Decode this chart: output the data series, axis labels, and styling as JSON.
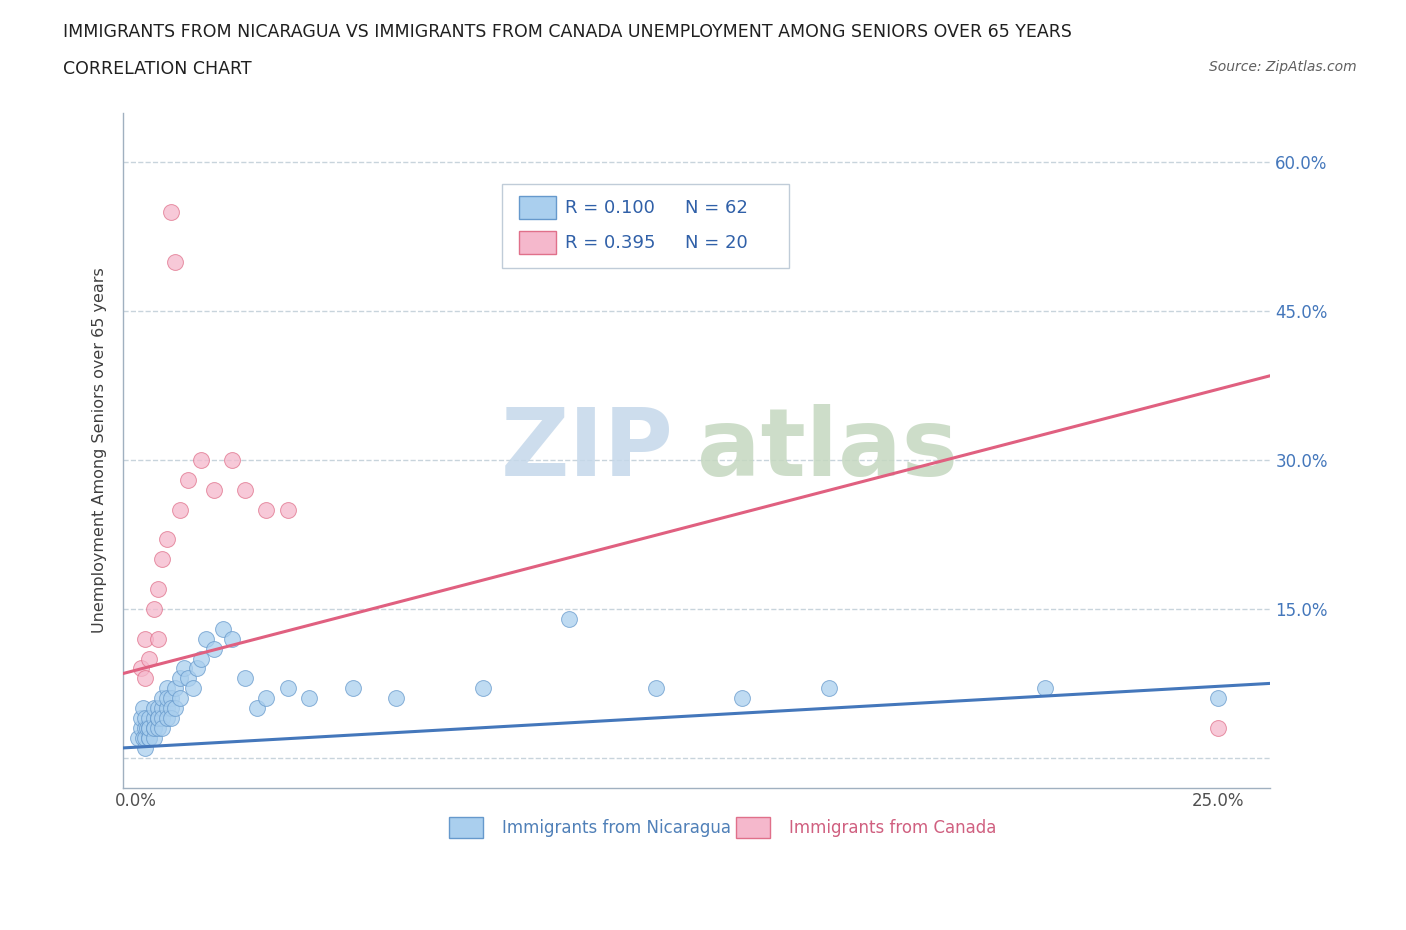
{
  "title_line1": "IMMIGRANTS FROM NICARAGUA VS IMMIGRANTS FROM CANADA UNEMPLOYMENT AMONG SENIORS OVER 65 YEARS",
  "title_line2": "CORRELATION CHART",
  "source_text": "Source: ZipAtlas.com",
  "ylabel": "Unemployment Among Seniors over 65 years",
  "xlim": [
    -0.003,
    0.262
  ],
  "ylim": [
    -0.03,
    0.65
  ],
  "x_ticks": [
    0.0,
    0.05,
    0.1,
    0.15,
    0.2,
    0.25
  ],
  "y_ticks": [
    0.0,
    0.15,
    0.3,
    0.45,
    0.6
  ],
  "nicaragua_color": "#aacfee",
  "nicaragua_edge": "#6699cc",
  "canada_color": "#f5b8cc",
  "canada_edge": "#e0708a",
  "nicaragua_line_color": "#4477bb",
  "canada_line_color": "#e06080",
  "R_nicaragua": 0.1,
  "N_nicaragua": 62,
  "R_canada": 0.395,
  "N_canada": 20,
  "legend_label_nicaragua": "Immigrants from Nicaragua",
  "legend_label_canada": "Immigrants from Canada",
  "watermark_zip": "ZIP",
  "watermark_atlas": "atlas",
  "watermark_color_zip": "#c5d8ea",
  "watermark_color_atlas": "#c5d8c0",
  "grid_color": "#c8d4dc",
  "nicaragua_x": [
    0.0005,
    0.001,
    0.001,
    0.0015,
    0.0015,
    0.002,
    0.002,
    0.002,
    0.002,
    0.0025,
    0.003,
    0.003,
    0.003,
    0.003,
    0.003,
    0.004,
    0.004,
    0.004,
    0.004,
    0.004,
    0.005,
    0.005,
    0.005,
    0.005,
    0.006,
    0.006,
    0.006,
    0.006,
    0.007,
    0.007,
    0.007,
    0.007,
    0.008,
    0.008,
    0.008,
    0.009,
    0.009,
    0.01,
    0.01,
    0.011,
    0.012,
    0.013,
    0.014,
    0.015,
    0.016,
    0.018,
    0.02,
    0.022,
    0.025,
    0.028,
    0.03,
    0.035,
    0.04,
    0.05,
    0.06,
    0.08,
    0.1,
    0.12,
    0.14,
    0.16,
    0.21,
    0.25
  ],
  "nicaragua_y": [
    0.02,
    0.03,
    0.04,
    0.02,
    0.05,
    0.01,
    0.03,
    0.04,
    0.02,
    0.03,
    0.02,
    0.03,
    0.04,
    0.02,
    0.03,
    0.03,
    0.04,
    0.05,
    0.02,
    0.03,
    0.04,
    0.05,
    0.03,
    0.04,
    0.05,
    0.06,
    0.04,
    0.03,
    0.07,
    0.05,
    0.06,
    0.04,
    0.06,
    0.05,
    0.04,
    0.07,
    0.05,
    0.08,
    0.06,
    0.09,
    0.08,
    0.07,
    0.09,
    0.1,
    0.12,
    0.11,
    0.13,
    0.12,
    0.08,
    0.05,
    0.06,
    0.07,
    0.06,
    0.07,
    0.06,
    0.07,
    0.14,
    0.07,
    0.06,
    0.07,
    0.07,
    0.06
  ],
  "canada_x": [
    0.001,
    0.002,
    0.002,
    0.003,
    0.004,
    0.005,
    0.005,
    0.006,
    0.007,
    0.008,
    0.009,
    0.01,
    0.012,
    0.015,
    0.018,
    0.022,
    0.025,
    0.03,
    0.035,
    0.25
  ],
  "canada_y": [
    0.09,
    0.12,
    0.08,
    0.1,
    0.15,
    0.17,
    0.12,
    0.2,
    0.22,
    0.55,
    0.5,
    0.25,
    0.28,
    0.3,
    0.27,
    0.3,
    0.27,
    0.25,
    0.25,
    0.03
  ],
  "nic_line_x0": 0.0,
  "nic_line_y0": 0.01,
  "nic_line_x1": 0.25,
  "nic_line_y1": 0.075,
  "can_line_x0": 0.0,
  "can_line_y0": 0.085,
  "can_line_x1": 0.25,
  "can_line_y1": 0.385
}
